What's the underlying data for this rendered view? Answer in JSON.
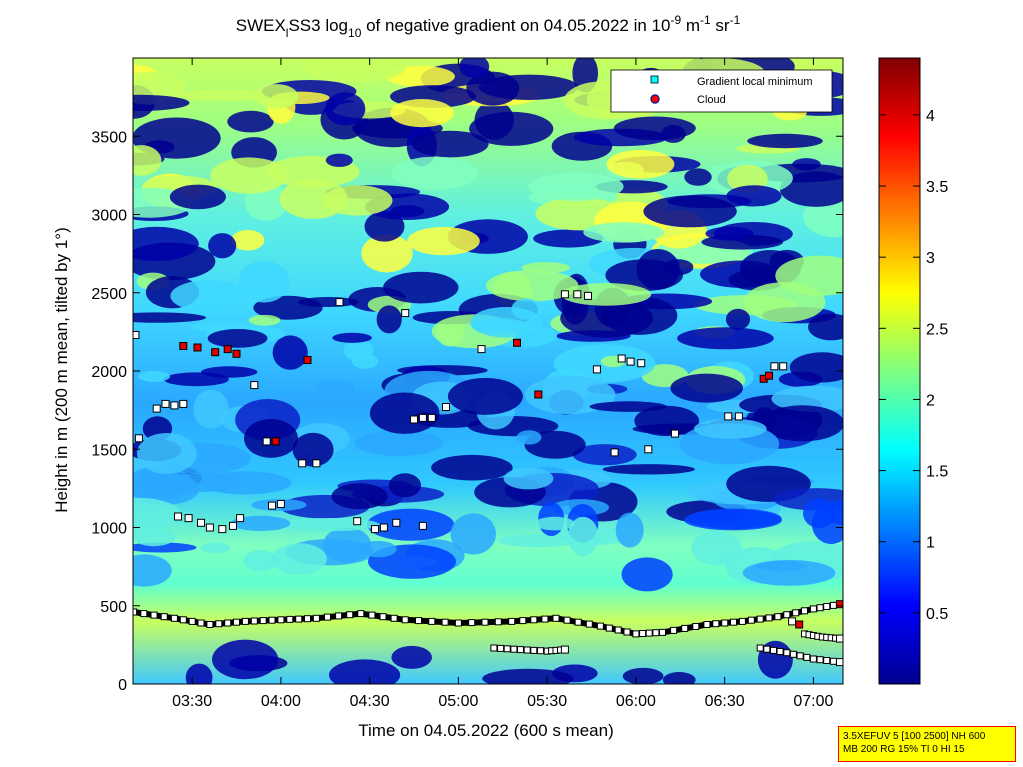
{
  "chart_data": {
    "type": "heatmap",
    "title_parts": {
      "a": "SWEX",
      "a_sub": "l",
      "b": "SS3 log",
      "b_sub": "10",
      "c": " of negative gradient on 04.05.2022 in 10",
      "c_sup": "-9",
      "d": " m",
      "d_sup": "-1",
      "e": " sr",
      "e_sup": "-1"
    },
    "xlabel": "Time on 04.05.2022 (600 s mean)",
    "ylabel": "Height in m (200 m mean, tilted by 1°)",
    "x_range": [
      "03:10",
      "07:10"
    ],
    "xlim_hours": [
      3.1667,
      7.1667
    ],
    "x_ticks": [
      {
        "label": "03:30",
        "h": 3.5
      },
      {
        "label": "04:00",
        "h": 4.0
      },
      {
        "label": "04:30",
        "h": 4.5
      },
      {
        "label": "05:00",
        "h": 5.0
      },
      {
        "label": "05:30",
        "h": 5.5
      },
      {
        "label": "06:00",
        "h": 6.0
      },
      {
        "label": "06:30",
        "h": 6.5
      },
      {
        "label": "07:00",
        "h": 7.0
      }
    ],
    "ylim": [
      0,
      4000
    ],
    "y_ticks": [
      "0",
      "500",
      "1000",
      "1500",
      "2000",
      "2500",
      "3000",
      "3500"
    ],
    "colorbar": {
      "range": [
        0,
        4.4
      ],
      "ticks": [
        "0.5",
        "1",
        "1.5",
        "2",
        "2.5",
        "3",
        "3.5",
        "4"
      ],
      "colormap": "jet"
    },
    "legend": {
      "position": "top-right",
      "entries": [
        {
          "label": "Gradient local minimum",
          "color": "#00ffff",
          "marker": "square"
        },
        {
          "label": "Cloud",
          "color": "#ff0000",
          "marker": "circle"
        }
      ]
    },
    "series": [
      {
        "name": "Gradient local minimum",
        "points": [
          {
            "t": 3.18,
            "h": 2230
          },
          {
            "t": 3.2,
            "h": 1570
          },
          {
            "t": 3.3,
            "h": 1760
          },
          {
            "t": 3.35,
            "h": 1790
          },
          {
            "t": 3.4,
            "h": 1780
          },
          {
            "t": 3.45,
            "h": 1790
          },
          {
            "t": 3.42,
            "h": 1070
          },
          {
            "t": 3.48,
            "h": 1060
          },
          {
            "t": 3.55,
            "h": 1030
          },
          {
            "t": 3.6,
            "h": 1000
          },
          {
            "t": 3.67,
            "h": 990
          },
          {
            "t": 3.73,
            "h": 1010
          },
          {
            "t": 3.77,
            "h": 1060
          },
          {
            "t": 3.85,
            "h": 1910
          },
          {
            "t": 3.92,
            "h": 1550
          },
          {
            "t": 3.95,
            "h": 1140
          },
          {
            "t": 4.0,
            "h": 1150
          },
          {
            "t": 4.12,
            "h": 1410
          },
          {
            "t": 4.2,
            "h": 1410
          },
          {
            "t": 4.33,
            "h": 2440
          },
          {
            "t": 4.43,
            "h": 1040
          },
          {
            "t": 4.53,
            "h": 990
          },
          {
            "t": 4.58,
            "h": 1000
          },
          {
            "t": 4.65,
            "h": 1030
          },
          {
            "t": 4.7,
            "h": 2370
          },
          {
            "t": 4.75,
            "h": 1690
          },
          {
            "t": 4.8,
            "h": 1700
          },
          {
            "t": 4.85,
            "h": 1700
          },
          {
            "t": 4.8,
            "h": 1010
          },
          {
            "t": 4.93,
            "h": 1770
          },
          {
            "t": 5.13,
            "h": 2140
          },
          {
            "t": 5.6,
            "h": 2490
          },
          {
            "t": 5.67,
            "h": 2490
          },
          {
            "t": 5.73,
            "h": 2480
          },
          {
            "t": 5.78,
            "h": 2010
          },
          {
            "t": 5.92,
            "h": 2080
          },
          {
            "t": 5.97,
            "h": 2060
          },
          {
            "t": 6.03,
            "h": 2050
          },
          {
            "t": 5.88,
            "h": 1480
          },
          {
            "t": 6.07,
            "h": 1500
          },
          {
            "t": 6.22,
            "h": 1600
          },
          {
            "t": 6.52,
            "h": 1710
          },
          {
            "t": 6.58,
            "h": 1710
          },
          {
            "t": 6.78,
            "h": 2030
          },
          {
            "t": 6.83,
            "h": 2030
          },
          {
            "t": 6.88,
            "h": 400
          },
          {
            "t": 7.15,
            "h": 290
          },
          {
            "t": 7.15,
            "h": 140
          },
          {
            "t": 5.6,
            "h": 220
          }
        ]
      },
      {
        "name": "Cloud",
        "points": [
          {
            "t": 3.45,
            "h": 2160
          },
          {
            "t": 3.53,
            "h": 2150
          },
          {
            "t": 3.63,
            "h": 2120
          },
          {
            "t": 3.7,
            "h": 2140
          },
          {
            "t": 3.75,
            "h": 2110
          },
          {
            "t": 3.97,
            "h": 1550
          },
          {
            "t": 4.15,
            "h": 2070
          },
          {
            "t": 5.33,
            "h": 2180
          },
          {
            "t": 5.45,
            "h": 1850
          },
          {
            "t": 6.72,
            "h": 1950
          },
          {
            "t": 6.75,
            "h": 1970
          },
          {
            "t": 6.92,
            "h": 380
          },
          {
            "t": 7.15,
            "h": 510
          }
        ]
      }
    ],
    "layer_traces": [
      {
        "name": "boundary layer top",
        "points": [
          {
            "t": 3.17,
            "h": 460
          },
          {
            "t": 3.4,
            "h": 420
          },
          {
            "t": 3.6,
            "h": 380
          },
          {
            "t": 3.8,
            "h": 400
          },
          {
            "t": 4.0,
            "h": 410
          },
          {
            "t": 4.2,
            "h": 420
          },
          {
            "t": 4.45,
            "h": 450
          },
          {
            "t": 4.7,
            "h": 410
          },
          {
            "t": 5.0,
            "h": 390
          },
          {
            "t": 5.3,
            "h": 400
          },
          {
            "t": 5.55,
            "h": 420
          },
          {
            "t": 5.8,
            "h": 370
          },
          {
            "t": 6.0,
            "h": 320
          },
          {
            "t": 6.15,
            "h": 330
          },
          {
            "t": 6.4,
            "h": 380
          },
          {
            "t": 6.6,
            "h": 400
          },
          {
            "t": 6.8,
            "h": 430
          },
          {
            "t": 7.0,
            "h": 480
          },
          {
            "t": 7.15,
            "h": 510
          }
        ]
      },
      {
        "name": "lower layer 1",
        "points": [
          {
            "t": 5.2,
            "h": 230
          },
          {
            "t": 5.35,
            "h": 220
          },
          {
            "t": 5.5,
            "h": 210
          },
          {
            "t": 5.6,
            "h": 220
          }
        ]
      },
      {
        "name": "lower layer 2",
        "points": [
          {
            "t": 6.7,
            "h": 230
          },
          {
            "t": 6.85,
            "h": 200
          },
          {
            "t": 7.0,
            "h": 160
          },
          {
            "t": 7.15,
            "h": 140
          }
        ]
      },
      {
        "name": "lower layer 3",
        "points": [
          {
            "t": 6.95,
            "h": 320
          },
          {
            "t": 7.05,
            "h": 300
          },
          {
            "t": 7.15,
            "h": 290
          }
        ]
      }
    ]
  },
  "info_box": {
    "line1": "3.5XEFUV 5 [100 2500] NH 600",
    "line2": "MB 200 RG 15% TI 0 HI 15"
  }
}
